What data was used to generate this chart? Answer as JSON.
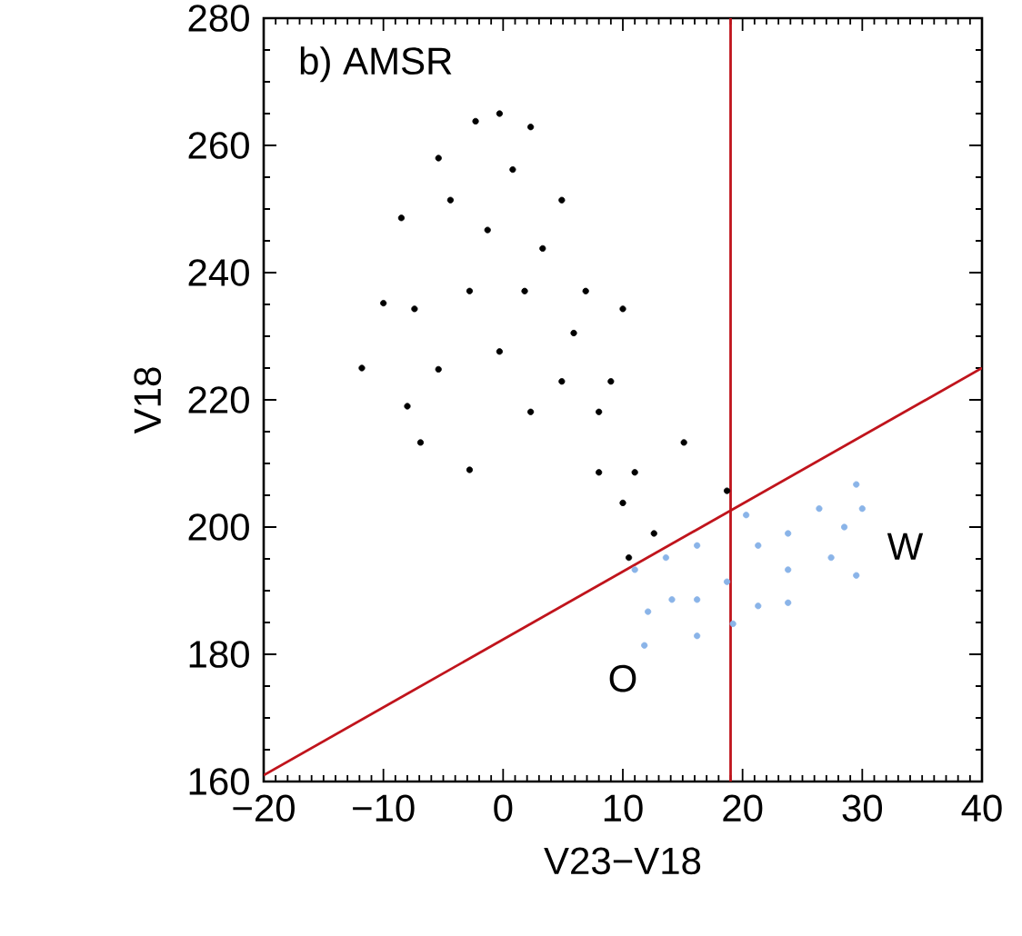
{
  "chart_data": {
    "type": "scatter",
    "xlabel": "V23−V18",
    "ylabel": "V18",
    "xlim": [
      -20,
      40
    ],
    "ylim": [
      160,
      280
    ],
    "xticks": [
      {
        "value": -20,
        "label": "−20"
      },
      {
        "value": -10,
        "label": "−10"
      },
      0,
      10,
      20,
      30,
      40
    ],
    "yticks": [
      160,
      180,
      200,
      220,
      240,
      260,
      280
    ],
    "annotations": [
      "b) AMSR",
      "O",
      "W"
    ],
    "ref_lines": [
      {
        "axis": "x",
        "value": 19,
        "color": "#c0141c"
      }
    ],
    "series": [
      {
        "color": "#000000",
        "x": [
          -0.3,
          -11.8,
          -8.5,
          -5.4,
          -2.3,
          2.3,
          4.9,
          6.9,
          9.0,
          11.0,
          12.6,
          10.5,
          8.0,
          4.9,
          1.8,
          -2.8,
          -2.8,
          -6.9,
          -7.4,
          15.1,
          18.7,
          10,
          -10,
          -4.4,
          0.8,
          -1.3,
          3.3,
          5.9,
          8.0,
          10,
          -8,
          -5.4,
          -0.3,
          2.3
        ],
        "values": [
          265,
          225,
          248.6,
          258,
          263.8,
          262.9,
          251.4,
          237.1,
          222.9,
          208.6,
          199,
          195.2,
          208.6,
          222.9,
          237.1,
          237.1,
          209,
          213.3,
          234.3,
          213.3,
          205.7,
          234.3,
          235.2,
          251.4,
          256.2,
          246.7,
          243.8,
          230.5,
          218.1,
          203.8,
          219,
          224.8,
          227.6,
          218.1
        ]
      },
      {
        "color": "#8ab4e8",
        "x": [
          11.0,
          11.8,
          16.2,
          19.2,
          23.8,
          29.5,
          30,
          29.5,
          26.4,
          23.8,
          20.3,
          16.2,
          13.6,
          14.1,
          18.7,
          23.8,
          27.4,
          21.3,
          16.2,
          12.1,
          21.3,
          28.5
        ],
        "values": [
          193.3,
          181.4,
          182.9,
          184.8,
          188.1,
          192.4,
          202.9,
          206.7,
          202.9,
          199,
          201.9,
          197.1,
          195.2,
          188.6,
          191.4,
          193.3,
          195.2,
          187.6,
          188.6,
          186.7,
          197.1,
          200
        ]
      },
      {
        "type": "line",
        "color": "#c0141c",
        "x": [
          -20,
          40
        ],
        "values": [
          161,
          225
        ]
      }
    ]
  }
}
